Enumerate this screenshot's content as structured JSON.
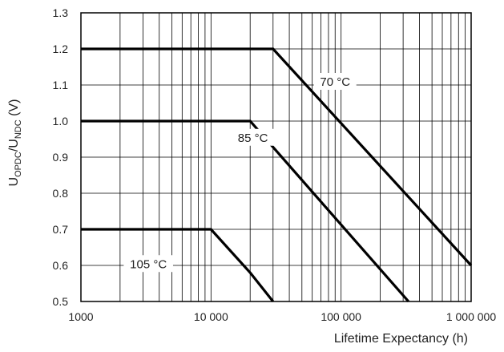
{
  "chart_data": {
    "type": "line",
    "xscale": "log",
    "xlim": [
      1000,
      1000000
    ],
    "ylim": [
      0.5,
      1.3
    ],
    "grid": true,
    "xlabel": "Lifetime Expectancy (h)",
    "ylabel_parts": {
      "main": "U",
      "sub1": "OPDC",
      "slash": "/U",
      "sub2": "NDC",
      "unit": " (V)"
    },
    "x_ticks": [
      {
        "value": 1000,
        "label": "1000"
      },
      {
        "value": 10000,
        "label": "10 000"
      },
      {
        "value": 100000,
        "label": "100 000"
      },
      {
        "value": 1000000,
        "label": "1 000 000"
      }
    ],
    "y_ticks": [
      {
        "value": 0.5,
        "label": "0.5"
      },
      {
        "value": 0.6,
        "label": "0.6"
      },
      {
        "value": 0.7,
        "label": "0.7"
      },
      {
        "value": 0.8,
        "label": "0.8"
      },
      {
        "value": 0.9,
        "label": "0.9"
      },
      {
        "value": 1.0,
        "label": "1.0"
      },
      {
        "value": 1.1,
        "label": "1.1"
      },
      {
        "value": 1.2,
        "label": "1.2"
      },
      {
        "value": 1.3,
        "label": "1.3"
      }
    ],
    "series": [
      {
        "name": "70 °C",
        "label_at": {
          "x": 90000,
          "y": 1.11
        },
        "points": [
          {
            "x": 1000,
            "y": 1.2
          },
          {
            "x": 30000,
            "y": 1.2
          },
          {
            "x": 1000000,
            "y": 0.6
          }
        ]
      },
      {
        "name": "85 °C",
        "label_at": {
          "x": 21000,
          "y": 0.955
        },
        "points": [
          {
            "x": 1000,
            "y": 1.0
          },
          {
            "x": 20000,
            "y": 1.0
          },
          {
            "x": 330000,
            "y": 0.5
          }
        ]
      },
      {
        "name": "105 °C",
        "label_at": {
          "x": 3300,
          "y": 0.605
        },
        "points": [
          {
            "x": 1000,
            "y": 0.7
          },
          {
            "x": 10000,
            "y": 0.7
          },
          {
            "x": 20000,
            "y": 0.58
          },
          {
            "x": 30000,
            "y": 0.5
          }
        ]
      }
    ]
  }
}
